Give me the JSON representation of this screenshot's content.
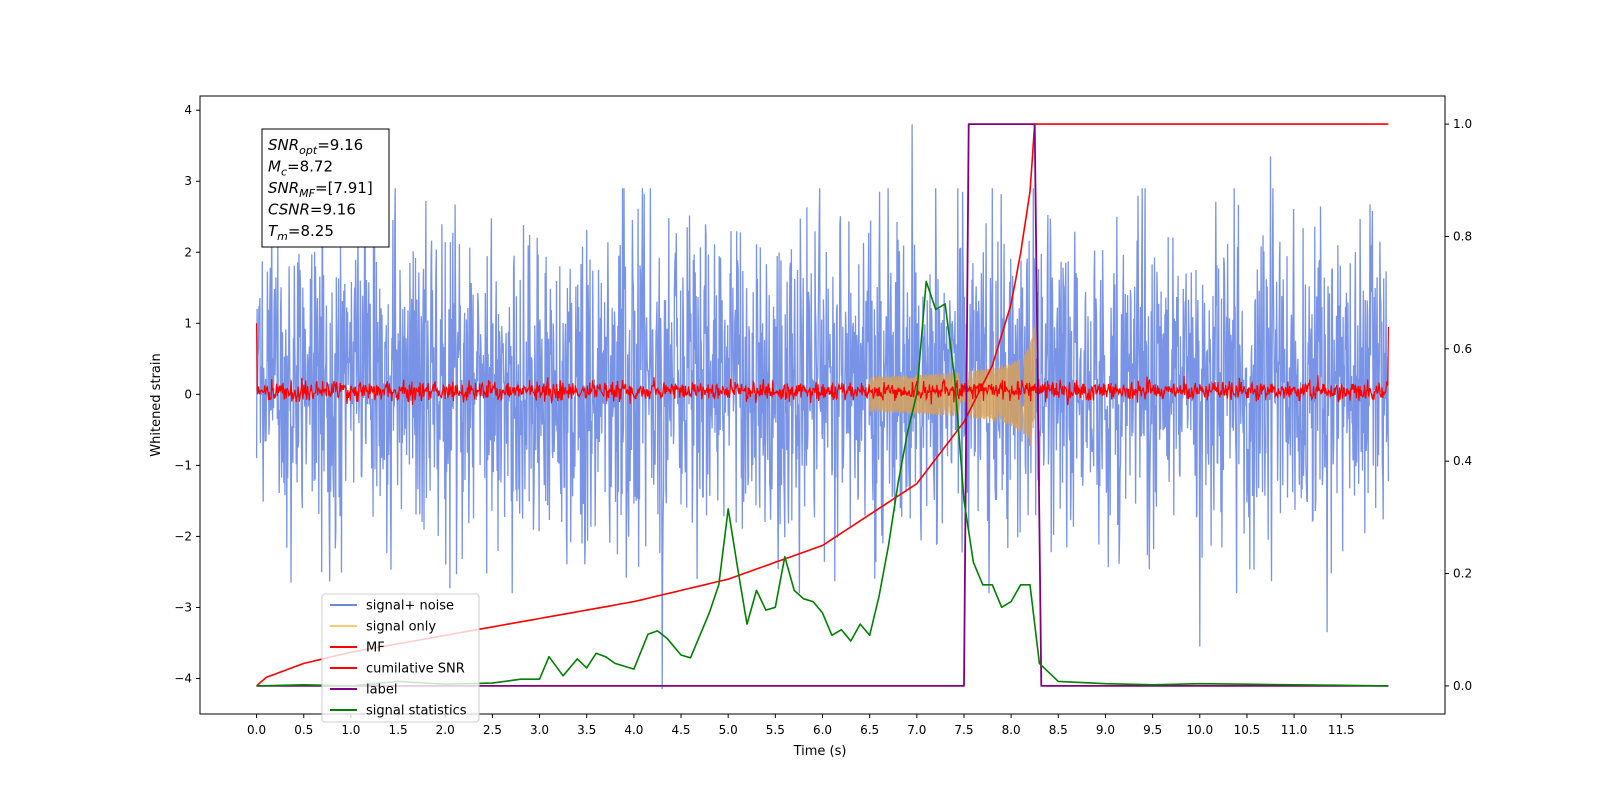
{
  "chart_data": {
    "type": "line",
    "xlabel": "Time (s)",
    "ylabel": "Whitened strain",
    "xlim": [
      -0.6,
      12.6
    ],
    "ylim": [
      -4.5,
      4.2
    ],
    "y2lim": [
      -0.05,
      1.05
    ],
    "x_ticks": [
      0.0,
      0.5,
      1.0,
      1.5,
      2.0,
      2.5,
      3.0,
      3.5,
      4.0,
      4.5,
      5.0,
      5.5,
      6.0,
      6.5,
      7.0,
      7.5,
      8.0,
      8.5,
      9.0,
      9.5,
      10.0,
      10.5,
      11.0,
      11.5
    ],
    "x_tick_labels": [
      "0.0",
      "0.5",
      "1.0",
      "1.5",
      "2.0",
      "2.5",
      "3.0",
      "3.5",
      "4.0",
      "4.5",
      "5.0",
      "5.5",
      "6.0",
      "6.5",
      "7.0",
      "7.5",
      "8.0",
      "8.5",
      "9.0",
      "9.5",
      "10.0",
      "10.5",
      "11.0",
      "11.5"
    ],
    "y_ticks": [
      4,
      3,
      2,
      1,
      0,
      -1,
      -2,
      -3,
      -4
    ],
    "y_tick_labels": [
      "4",
      "3",
      "2",
      "1",
      "0",
      "−1",
      "−2",
      "−3",
      "−4"
    ],
    "y2_ticks": [
      1.0,
      0.8,
      0.6,
      0.4,
      0.2,
      0.0
    ],
    "y2_tick_labels": [
      "1.0",
      "0.8",
      "0.6",
      "0.4",
      "0.2",
      "0.0"
    ],
    "grid": false,
    "legend_position": "bottom-left",
    "legend": [
      {
        "label": "signal+ noise",
        "color": "#6a88e4"
      },
      {
        "label": "signal only",
        "color": "#f0c050"
      },
      {
        "label": "MF",
        "color": "#ff0000"
      },
      {
        "label": "cumilative SNR",
        "color": "#ff0000"
      },
      {
        "label": "label",
        "color": "#800080"
      },
      {
        "label": "signal statistics",
        "color": "#008000"
      }
    ],
    "annotation": {
      "lines": [
        {
          "var": "SNR",
          "sub": "opt",
          "value": "=9.16"
        },
        {
          "var": "M",
          "sub": "c",
          "value": "=8.72"
        },
        {
          "var": "SNR",
          "sub": "MF",
          "value": "=[7.91]"
        },
        {
          "var": "CSNR",
          "sub": "",
          "value": "=9.16"
        },
        {
          "var": "T",
          "sub": "m",
          "value": "=8.25"
        }
      ]
    },
    "series": [
      {
        "name": "signal+ noise",
        "axis": "left",
        "kind": "noise_band",
        "x_range": [
          0.0,
          12.0
        ],
        "approx_envelope": [
          -2.6,
          2.9
        ],
        "outliers": [
          [
            6.95,
            3.8
          ],
          [
            10.75,
            3.35
          ],
          [
            4.3,
            -4.15
          ],
          [
            10.0,
            -3.55
          ],
          [
            11.35,
            -3.35
          ]
        ]
      },
      {
        "name": "signal only",
        "axis": "left",
        "kind": "chirp",
        "x_range": [
          6.5,
          8.25
        ],
        "peak_amplitude": 0.95
      },
      {
        "name": "MF",
        "axis": "left",
        "kind": "noise_band",
        "x_range": [
          0.0,
          12.0
        ],
        "approx_envelope": [
          -0.2,
          0.3
        ],
        "end_values": [
          1.0,
          0.95
        ]
      },
      {
        "name": "cumilative SNR",
        "axis": "right",
        "x": [
          0.0,
          0.1,
          0.5,
          1.0,
          2.0,
          3.0,
          4.0,
          5.0,
          6.0,
          7.0,
          7.5,
          7.8,
          8.0,
          8.1,
          8.2,
          8.25,
          12.0
        ],
        "y": [
          0.0,
          0.015,
          0.04,
          0.06,
          0.09,
          0.12,
          0.15,
          0.19,
          0.25,
          0.36,
          0.47,
          0.57,
          0.68,
          0.77,
          0.88,
          1.0,
          1.0
        ]
      },
      {
        "name": "label",
        "axis": "right",
        "x": [
          0.0,
          7.5,
          7.55,
          8.25,
          8.32,
          12.0
        ],
        "y": [
          0.0,
          0.0,
          1.0,
          1.0,
          0.0,
          0.0
        ]
      },
      {
        "name": "signal statistics",
        "axis": "right",
        "x": [
          0.0,
          0.5,
          1.0,
          1.5,
          2.0,
          2.5,
          2.8,
          3.0,
          3.1,
          3.25,
          3.4,
          3.5,
          3.6,
          3.7,
          3.8,
          4.0,
          4.15,
          4.25,
          4.35,
          4.5,
          4.6,
          4.7,
          4.8,
          4.9,
          5.0,
          5.1,
          5.2,
          5.3,
          5.4,
          5.5,
          5.6,
          5.7,
          5.8,
          5.9,
          6.0,
          6.1,
          6.2,
          6.3,
          6.4,
          6.5,
          6.6,
          6.7,
          6.8,
          6.9,
          7.0,
          7.1,
          7.2,
          7.3,
          7.4,
          7.5,
          7.6,
          7.7,
          7.8,
          7.9,
          8.0,
          8.1,
          8.2,
          8.3,
          8.5,
          9.0,
          9.5,
          10.0,
          10.5,
          11.0,
          11.5,
          12.0
        ],
        "y": [
          0.0,
          0.002,
          0.0,
          0.008,
          0.003,
          0.005,
          0.012,
          0.012,
          0.052,
          0.018,
          0.048,
          0.032,
          0.058,
          0.052,
          0.04,
          0.03,
          0.092,
          0.098,
          0.085,
          0.055,
          0.05,
          0.09,
          0.13,
          0.18,
          0.315,
          0.21,
          0.11,
          0.17,
          0.135,
          0.14,
          0.23,
          0.17,
          0.155,
          0.15,
          0.13,
          0.09,
          0.1,
          0.08,
          0.11,
          0.09,
          0.16,
          0.25,
          0.36,
          0.45,
          0.52,
          0.72,
          0.67,
          0.68,
          0.55,
          0.33,
          0.22,
          0.18,
          0.18,
          0.14,
          0.15,
          0.18,
          0.18,
          0.04,
          0.008,
          0.004,
          0.002,
          0.004,
          0.003,
          0.002,
          0.001,
          0.0
        ]
      }
    ]
  }
}
